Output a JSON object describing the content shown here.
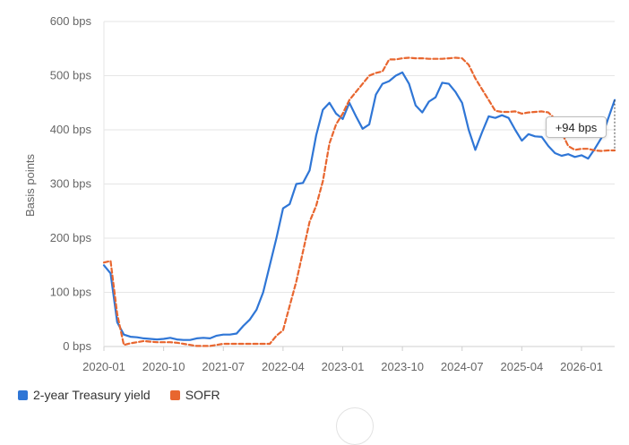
{
  "chart_data": {
    "type": "line",
    "ylabel": "Basis points",
    "y_unit_suffix": " bps",
    "ylim": [
      0,
      600
    ],
    "yticks": [
      0,
      100,
      200,
      300,
      400,
      500,
      600
    ],
    "x_range": [
      "2020-01",
      "2026-06"
    ],
    "xtick_labels": [
      "2020-01",
      "2020-10",
      "2021-07",
      "2022-04",
      "2023-01",
      "2023-10",
      "2024-07",
      "2025-04",
      "2026-01"
    ],
    "grid": true,
    "legend_position": "bottom-left",
    "series": [
      {
        "name": "2-year Treasury yield",
        "color": "#2f76d6",
        "style": "solid",
        "points": [
          [
            "2020-01",
            150
          ],
          [
            "2020-02",
            135
          ],
          [
            "2020-03",
            45
          ],
          [
            "2020-04",
            22
          ],
          [
            "2020-05",
            18
          ],
          [
            "2020-06",
            17
          ],
          [
            "2020-07",
            15
          ],
          [
            "2020-08",
            14
          ],
          [
            "2020-09",
            13
          ],
          [
            "2020-10",
            14
          ],
          [
            "2020-11",
            16
          ],
          [
            "2020-12",
            13
          ],
          [
            "2021-01",
            12
          ],
          [
            "2021-02",
            12
          ],
          [
            "2021-03",
            15
          ],
          [
            "2021-04",
            16
          ],
          [
            "2021-05",
            15
          ],
          [
            "2021-06",
            20
          ],
          [
            "2021-07",
            22
          ],
          [
            "2021-08",
            22
          ],
          [
            "2021-09",
            24
          ],
          [
            "2021-10",
            38
          ],
          [
            "2021-11",
            50
          ],
          [
            "2021-12",
            68
          ],
          [
            "2022-01",
            100
          ],
          [
            "2022-02",
            150
          ],
          [
            "2022-03",
            200
          ],
          [
            "2022-04",
            255
          ],
          [
            "2022-05",
            263
          ],
          [
            "2022-06",
            300
          ],
          [
            "2022-07",
            302
          ],
          [
            "2022-08",
            325
          ],
          [
            "2022-09",
            390
          ],
          [
            "2022-10",
            437
          ],
          [
            "2022-11",
            450
          ],
          [
            "2022-12",
            430
          ],
          [
            "2023-01",
            420
          ],
          [
            "2023-02",
            450
          ],
          [
            "2023-03",
            425
          ],
          [
            "2023-04",
            402
          ],
          [
            "2023-05",
            410
          ],
          [
            "2023-06",
            465
          ],
          [
            "2023-07",
            485
          ],
          [
            "2023-08",
            490
          ],
          [
            "2023-09",
            500
          ],
          [
            "2023-10",
            506
          ],
          [
            "2023-11",
            485
          ],
          [
            "2023-12",
            445
          ],
          [
            "2024-01",
            432
          ],
          [
            "2024-02",
            452
          ],
          [
            "2024-03",
            460
          ],
          [
            "2024-04",
            487
          ],
          [
            "2024-05",
            485
          ],
          [
            "2024-06",
            470
          ],
          [
            "2024-07",
            450
          ],
          [
            "2024-08",
            400
          ],
          [
            "2024-09",
            363
          ],
          [
            "2024-10",
            395
          ],
          [
            "2024-11",
            425
          ],
          [
            "2024-12",
            422
          ],
          [
            "2025-01",
            427
          ],
          [
            "2025-02",
            422
          ],
          [
            "2025-03",
            400
          ],
          [
            "2025-04",
            380
          ],
          [
            "2025-05",
            392
          ],
          [
            "2025-06",
            388
          ],
          [
            "2025-07",
            387
          ],
          [
            "2025-08",
            370
          ],
          [
            "2025-09",
            357
          ],
          [
            "2025-10",
            352
          ],
          [
            "2025-11",
            355
          ],
          [
            "2025-12",
            350
          ],
          [
            "2026-01",
            353
          ],
          [
            "2026-02",
            347
          ],
          [
            "2026-03",
            365
          ],
          [
            "2026-04",
            385
          ],
          [
            "2026-05",
            420
          ],
          [
            "2026-06",
            455
          ]
        ]
      },
      {
        "name": "SOFR",
        "color": "#e8662f",
        "style": "dashed",
        "points": [
          [
            "2020-01",
            155
          ],
          [
            "2020-02",
            158
          ],
          [
            "2020-03",
            60
          ],
          [
            "2020-04",
            3
          ],
          [
            "2020-05",
            6
          ],
          [
            "2020-06",
            8
          ],
          [
            "2020-07",
            10
          ],
          [
            "2020-08",
            9
          ],
          [
            "2020-09",
            8
          ],
          [
            "2020-10",
            8
          ],
          [
            "2020-11",
            8
          ],
          [
            "2020-12",
            7
          ],
          [
            "2021-01",
            5
          ],
          [
            "2021-02",
            3
          ],
          [
            "2021-03",
            1
          ],
          [
            "2021-04",
            1
          ],
          [
            "2021-05",
            1
          ],
          [
            "2021-06",
            3
          ],
          [
            "2021-07",
            5
          ],
          [
            "2021-08",
            5
          ],
          [
            "2021-09",
            5
          ],
          [
            "2021-10",
            5
          ],
          [
            "2021-11",
            5
          ],
          [
            "2021-12",
            5
          ],
          [
            "2022-01",
            5
          ],
          [
            "2022-02",
            5
          ],
          [
            "2022-03",
            20
          ],
          [
            "2022-04",
            30
          ],
          [
            "2022-05",
            75
          ],
          [
            "2022-06",
            120
          ],
          [
            "2022-07",
            175
          ],
          [
            "2022-08",
            230
          ],
          [
            "2022-09",
            260
          ],
          [
            "2022-10",
            305
          ],
          [
            "2022-11",
            375
          ],
          [
            "2022-12",
            410
          ],
          [
            "2023-01",
            430
          ],
          [
            "2023-02",
            455
          ],
          [
            "2023-03",
            470
          ],
          [
            "2023-04",
            485
          ],
          [
            "2023-05",
            500
          ],
          [
            "2023-06",
            505
          ],
          [
            "2023-07",
            508
          ],
          [
            "2023-08",
            530
          ],
          [
            "2023-09",
            530
          ],
          [
            "2023-10",
            532
          ],
          [
            "2023-11",
            533
          ],
          [
            "2023-12",
            532
          ],
          [
            "2024-01",
            532
          ],
          [
            "2024-02",
            531
          ],
          [
            "2024-03",
            531
          ],
          [
            "2024-04",
            531
          ],
          [
            "2024-05",
            532
          ],
          [
            "2024-06",
            533
          ],
          [
            "2024-07",
            532
          ],
          [
            "2024-08",
            520
          ],
          [
            "2024-09",
            495
          ],
          [
            "2024-10",
            475
          ],
          [
            "2024-11",
            455
          ],
          [
            "2024-12",
            435
          ],
          [
            "2025-01",
            433
          ],
          [
            "2025-02",
            433
          ],
          [
            "2025-03",
            434
          ],
          [
            "2025-04",
            430
          ],
          [
            "2025-05",
            432
          ],
          [
            "2025-06",
            433
          ],
          [
            "2025-07",
            434
          ],
          [
            "2025-08",
            432
          ],
          [
            "2025-09",
            420
          ],
          [
            "2025-10",
            395
          ],
          [
            "2025-11",
            370
          ],
          [
            "2025-12",
            363
          ],
          [
            "2026-01",
            365
          ],
          [
            "2026-02",
            365
          ],
          [
            "2026-03",
            362
          ],
          [
            "2026-04",
            361
          ],
          [
            "2026-05",
            362
          ],
          [
            "2026-06",
            362
          ]
        ]
      }
    ],
    "annotation": {
      "text": "+94 bps",
      "at": "2026-06"
    }
  }
}
